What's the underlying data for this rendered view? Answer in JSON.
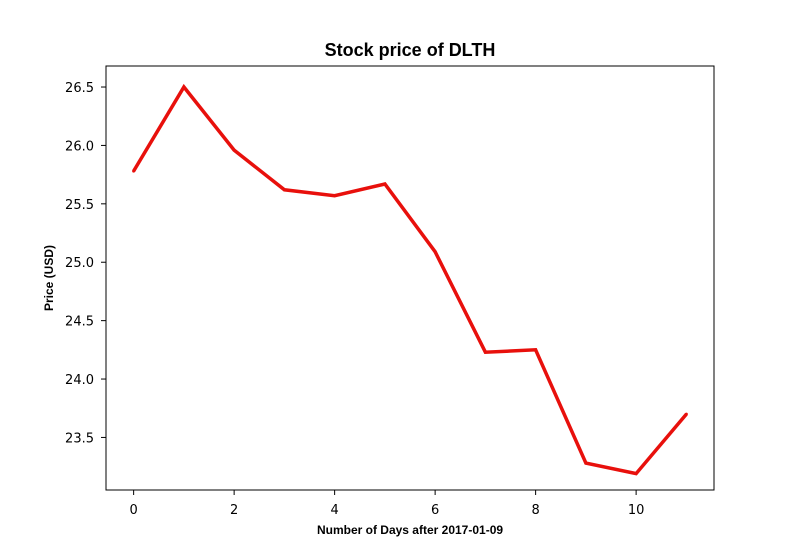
{
  "chart_data": {
    "type": "line",
    "title": "Stock price of DLTH",
    "xlabel": "Number of Days after 2017-01-09",
    "ylabel": "Price (USD)",
    "x": [
      0,
      1,
      2,
      3,
      4,
      5,
      6,
      7,
      8,
      9,
      10,
      11
    ],
    "series": [
      {
        "values": [
          25.78,
          26.5,
          25.96,
          25.62,
          25.57,
          25.67,
          25.09,
          24.23,
          24.25,
          23.28,
          23.19,
          23.7
        ],
        "color": "#e8100c"
      }
    ],
    "xlim": [
      -0.55,
      11.55
    ],
    "ylim": [
      23.05,
      26.68
    ],
    "xticks": [
      0,
      2,
      4,
      6,
      8,
      10
    ],
    "xtick_labels": [
      "0",
      "2",
      "4",
      "6",
      "8",
      "10"
    ],
    "yticks": [
      23.5,
      24.0,
      24.5,
      25.0,
      25.5,
      26.0,
      26.5
    ],
    "ytick_labels": [
      "23.5",
      "24.0",
      "24.5",
      "25.0",
      "25.5",
      "26.0",
      "26.5"
    ],
    "grid": false
  }
}
